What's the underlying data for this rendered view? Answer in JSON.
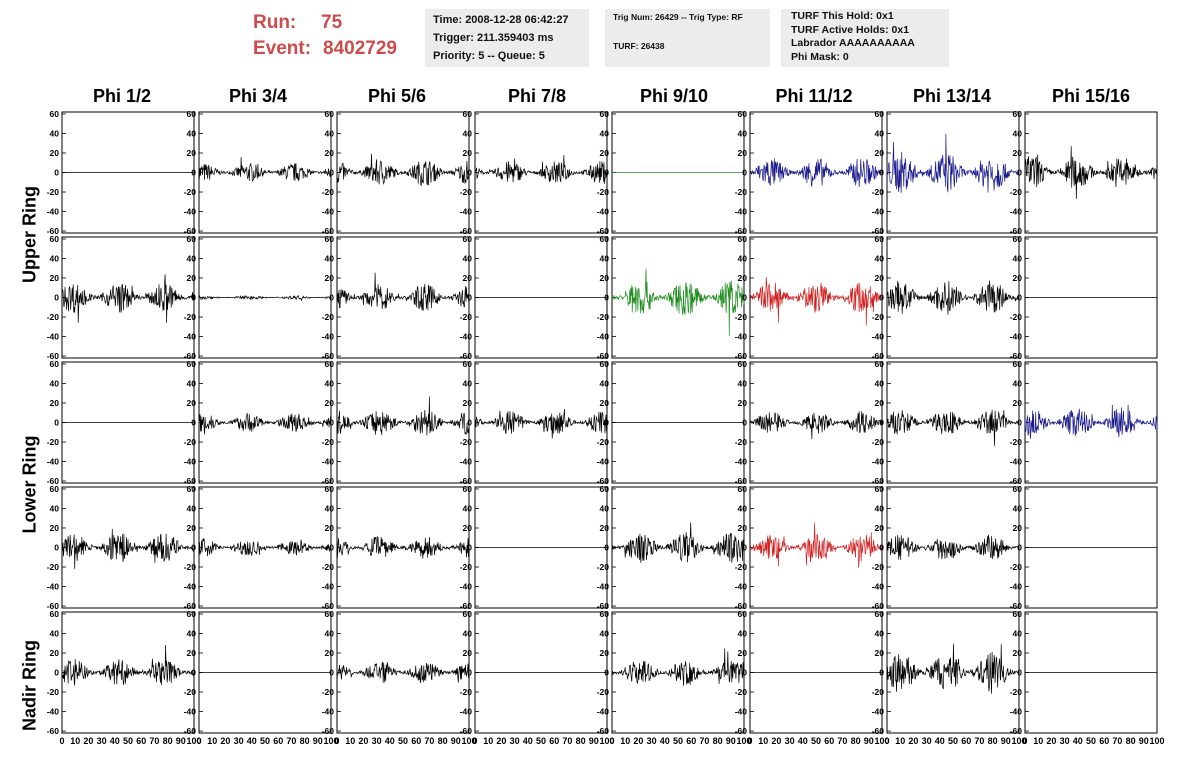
{
  "header": {
    "run_label": "Run:",
    "run_value": "75",
    "event_label": "Event:",
    "event_value": "8402729",
    "time": "Time: 2008-12-28 06:42:27",
    "trigger": "Trigger: 211.359403 ms",
    "priority": "Priority: 5 -- Queue: 5",
    "trig_num": "Trig Num: 26429 -- Trig Type: RF",
    "turf": "TURF: 26438",
    "turf_this_hold": "TURF This Hold: 0x1",
    "turf_active_holds": "TURF Active Holds: 0x1",
    "labrador": "Labrador AAAAAAAAAA",
    "phi_mask": "Phi Mask: 0"
  },
  "columns": [
    "Phi 1/2",
    "Phi 3/4",
    "Phi 5/6",
    "Phi 7/8",
    "Phi 9/10",
    "Phi 11/12",
    "Phi 13/14",
    "Phi 15/16"
  ],
  "ring_labels": [
    "Upper Ring",
    "Lower Ring",
    "Nadir Ring"
  ],
  "colors": {
    "black": "#000000",
    "blue": "#1a1a8c",
    "green": "#1e8c1e",
    "red": "#d02020",
    "header_red": "#cd4b4b",
    "info_bg": "#ececec"
  },
  "chart_data": {
    "type": "line",
    "x_ticks": [
      "0",
      "10",
      "20",
      "30",
      "40",
      "50",
      "60",
      "70",
      "80",
      "90",
      "100"
    ],
    "y_ticks": [
      "60",
      "40",
      "20",
      "0",
      "-20",
      "-40",
      "-60"
    ],
    "xlim": [
      0,
      100
    ],
    "ylim": [
      -62,
      62
    ],
    "rows": [
      [
        {
          "color": "black",
          "amp": 0
        },
        {
          "color": "black",
          "amp": 10
        },
        {
          "color": "black",
          "amp": 14
        },
        {
          "color": "black",
          "amp": 12
        },
        {
          "color": "green",
          "amp": 0
        },
        {
          "color": "blue",
          "amp": 16
        },
        {
          "color": "blue",
          "amp": 22
        },
        {
          "color": "black",
          "amp": 18
        }
      ],
      [
        {
          "color": "black",
          "amp": 16
        },
        {
          "color": "black",
          "amp": 2
        },
        {
          "color": "black",
          "amp": 14
        },
        {
          "color": "black",
          "amp": 0
        },
        {
          "color": "green",
          "amp": 20
        },
        {
          "color": "red",
          "amp": 18
        },
        {
          "color": "black",
          "amp": 18
        },
        {
          "color": "black",
          "amp": 0
        }
      ],
      [
        {
          "color": "black",
          "amp": 0
        },
        {
          "color": "black",
          "amp": 10
        },
        {
          "color": "black",
          "amp": 14
        },
        {
          "color": "black",
          "amp": 12
        },
        {
          "color": "black",
          "amp": 0
        },
        {
          "color": "black",
          "amp": 12
        },
        {
          "color": "black",
          "amp": 14
        },
        {
          "color": "blue",
          "amp": 16
        }
      ],
      [
        {
          "color": "black",
          "amp": 16
        },
        {
          "color": "black",
          "amp": 10
        },
        {
          "color": "black",
          "amp": 12
        },
        {
          "color": "black",
          "amp": 0
        },
        {
          "color": "black",
          "amp": 16
        },
        {
          "color": "red",
          "amp": 14
        },
        {
          "color": "black",
          "amp": 14
        },
        {
          "color": "black",
          "amp": 0
        }
      ],
      [
        {
          "color": "black",
          "amp": 14
        },
        {
          "color": "black",
          "amp": 0
        },
        {
          "color": "black",
          "amp": 12
        },
        {
          "color": "black",
          "amp": 0
        },
        {
          "color": "black",
          "amp": 14
        },
        {
          "color": "black",
          "amp": 0
        },
        {
          "color": "black",
          "amp": 22
        },
        {
          "color": "black",
          "amp": 0
        }
      ]
    ]
  }
}
